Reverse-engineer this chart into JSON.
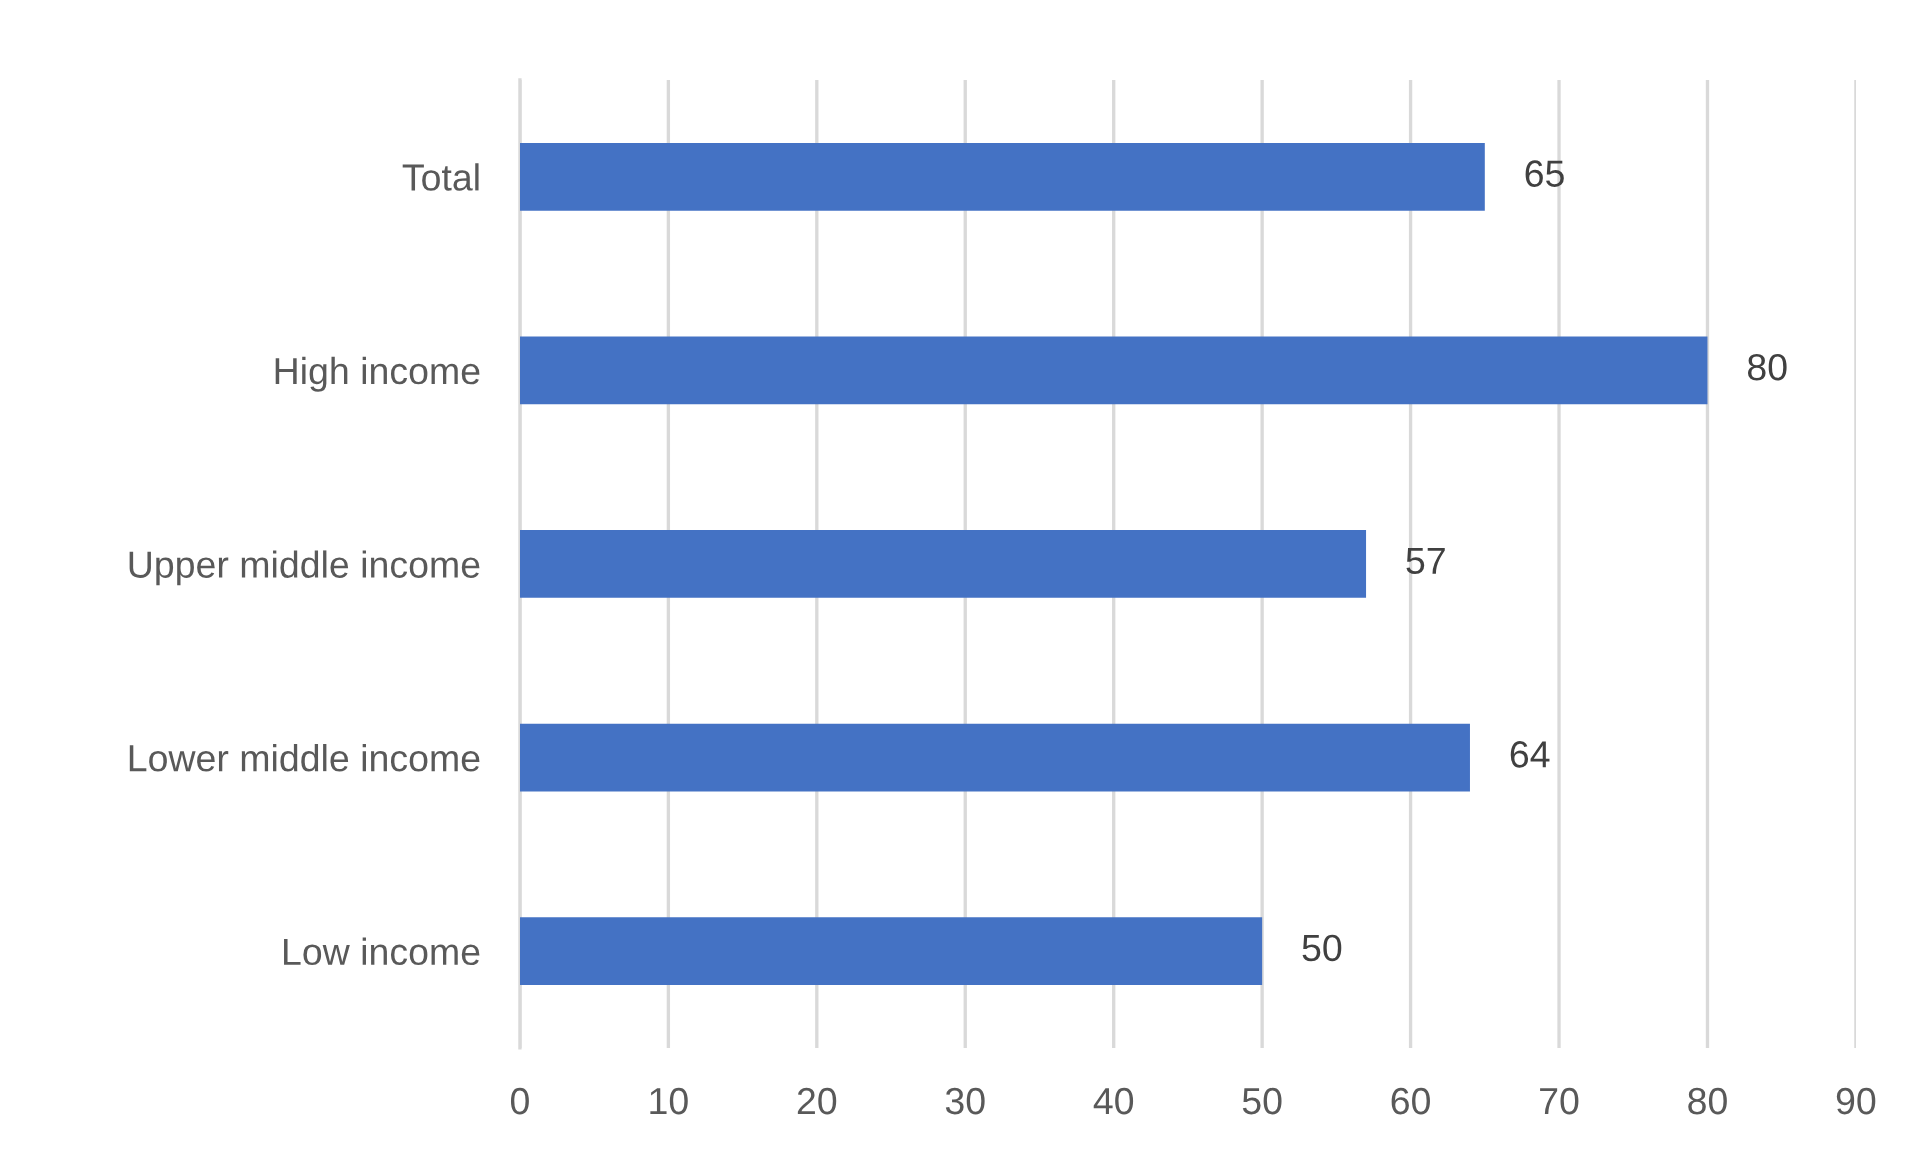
{
  "chart_data": {
    "type": "bar",
    "orientation": "horizontal",
    "categories": [
      "Total",
      "High income",
      "Upper middle income",
      "Lower middle income",
      "Low income"
    ],
    "values": [
      65,
      80,
      57,
      64,
      50
    ],
    "color": "#4472c4",
    "xlim": [
      0,
      90
    ],
    "xticks": [
      0,
      10,
      20,
      30,
      40,
      50,
      60,
      70,
      80,
      90
    ],
    "grid": "x",
    "data_labels": true
  }
}
